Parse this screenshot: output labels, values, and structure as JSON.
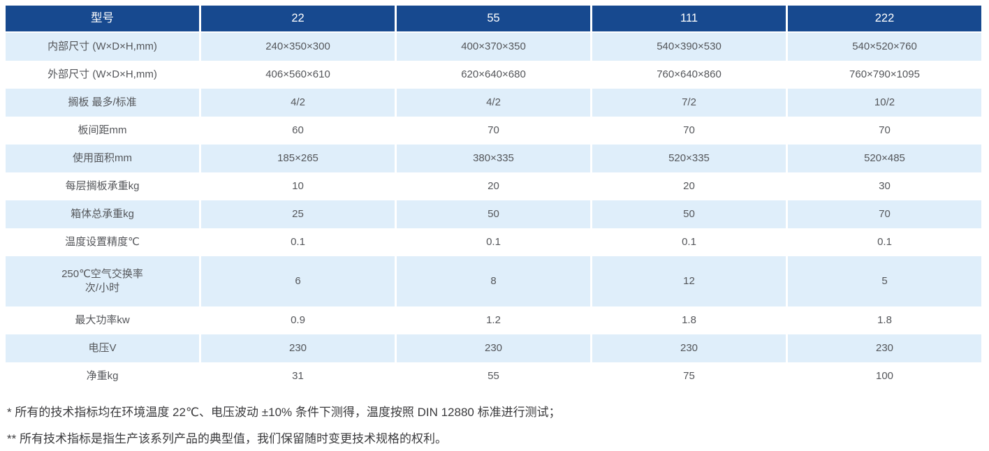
{
  "table": {
    "header": [
      "型号",
      "22",
      "55",
      "111",
      "222"
    ],
    "rows": [
      {
        "label": "内部尺寸 (W×D×H,mm)",
        "values": [
          "240×350×300",
          "400×370×350",
          "540×390×530",
          "540×520×760"
        ]
      },
      {
        "label": "外部尺寸 (W×D×H,mm)",
        "values": [
          "406×560×610",
          "620×640×680",
          "760×640×860",
          "760×790×1095"
        ]
      },
      {
        "label": "搁板 最多/标准",
        "values": [
          "4/2",
          "4/2",
          "7/2",
          "10/2"
        ]
      },
      {
        "label": "板间距mm",
        "values": [
          "60",
          "70",
          "70",
          "70"
        ]
      },
      {
        "label": "使用面积mm",
        "values": [
          "185×265",
          "380×335",
          "520×335",
          "520×485"
        ]
      },
      {
        "label": "每层搁板承重kg",
        "values": [
          "10",
          "20",
          "20",
          "30"
        ]
      },
      {
        "label": "箱体总承重kg",
        "values": [
          "25",
          "50",
          "50",
          "70"
        ]
      },
      {
        "label": "温度设置精度℃",
        "values": [
          "0.1",
          "0.1",
          "0.1",
          "0.1"
        ]
      },
      {
        "label": "250℃空气交换率\n次/小时",
        "values": [
          "6",
          "8",
          "12",
          "5"
        ],
        "tall": true
      },
      {
        "label": "最大功率kw",
        "values": [
          "0.9",
          "1.2",
          "1.8",
          "1.8"
        ]
      },
      {
        "label": "电压V",
        "values": [
          "230",
          "230",
          "230",
          "230"
        ]
      },
      {
        "label": "净重kg",
        "values": [
          "31",
          "55",
          "75",
          "100"
        ]
      }
    ]
  },
  "footnotes": [
    "* 所有的技术指标均在环境温度 22℃、电压波动 ±10% 条件下测得，温度按照 DIN 12880 标准进行测试；",
    "** 所有技术指标是指生产该系列产品的典型值，我们保留随时变更技术规格的权利。"
  ],
  "colors": {
    "header_bg": "#17498F",
    "stripe_bg": "#DFEEFA",
    "row_bg": "#FFFFFF",
    "header_text": "#FFFFFF",
    "cell_text": "#54565A",
    "note_text": "#3A3A3C"
  }
}
